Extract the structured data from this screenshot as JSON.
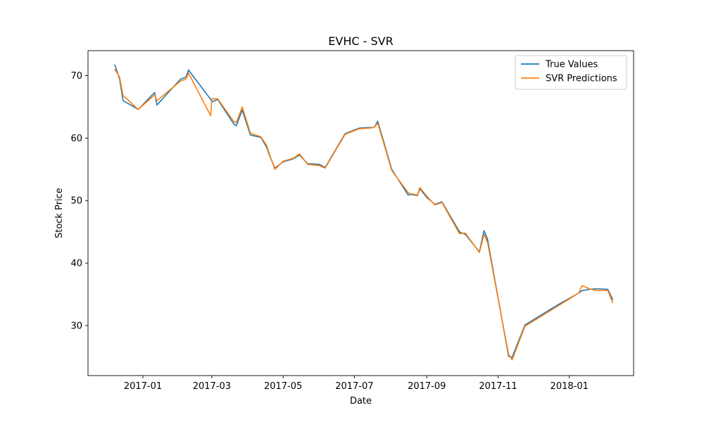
{
  "chart_data": {
    "type": "line",
    "title": "EVHC - SVR",
    "xlabel": "Date",
    "ylabel": "Stock Price",
    "xlim": [
      "2016-11-15",
      "2018-02-25"
    ],
    "ylim": [
      22,
      74
    ],
    "x_ticks": [
      {
        "date": "2017-01-01",
        "label": "2017-01"
      },
      {
        "date": "2017-03-01",
        "label": "2017-03"
      },
      {
        "date": "2017-05-01",
        "label": "2017-05"
      },
      {
        "date": "2017-07-01",
        "label": "2017-07"
      },
      {
        "date": "2017-09-01",
        "label": "2017-09"
      },
      {
        "date": "2017-11-01",
        "label": "2017-11"
      },
      {
        "date": "2018-01-01",
        "label": "2018-01"
      }
    ],
    "y_ticks": [
      30,
      40,
      50,
      60,
      70
    ],
    "grid": false,
    "legend_position": "top-right",
    "series": [
      {
        "name": "True Values",
        "color": "#1f77b4",
        "points": [
          [
            "2016-12-08",
            71.7
          ],
          [
            "2016-12-12",
            69.5
          ],
          [
            "2016-12-15",
            66.0
          ],
          [
            "2016-12-28",
            64.6
          ],
          [
            "2017-01-11",
            67.3
          ],
          [
            "2017-01-13",
            65.3
          ],
          [
            "2017-02-02",
            69.4
          ],
          [
            "2017-02-07",
            69.8
          ],
          [
            "2017-02-09",
            70.9
          ],
          [
            "2017-02-28",
            66.2
          ],
          [
            "2017-03-01",
            65.8
          ],
          [
            "2017-03-06",
            66.2
          ],
          [
            "2017-03-20",
            62.2
          ],
          [
            "2017-03-22",
            62.0
          ],
          [
            "2017-03-27",
            64.5
          ],
          [
            "2017-04-03",
            60.5
          ],
          [
            "2017-04-12",
            60.1
          ],
          [
            "2017-04-17",
            58.5
          ],
          [
            "2017-04-19",
            57.4
          ],
          [
            "2017-04-24",
            55.2
          ],
          [
            "2017-05-01",
            56.2
          ],
          [
            "2017-05-10",
            56.7
          ],
          [
            "2017-05-15",
            57.3
          ],
          [
            "2017-05-22",
            55.9
          ],
          [
            "2017-06-01",
            55.8
          ],
          [
            "2017-06-06",
            55.3
          ],
          [
            "2017-06-23",
            60.7
          ],
          [
            "2017-07-05",
            61.6
          ],
          [
            "2017-07-13",
            61.7
          ],
          [
            "2017-07-18",
            61.7
          ],
          [
            "2017-07-21",
            62.7
          ],
          [
            "2017-08-02",
            55.0
          ],
          [
            "2017-08-16",
            50.9
          ],
          [
            "2017-08-18",
            51.0
          ],
          [
            "2017-08-24",
            50.8
          ],
          [
            "2017-08-26",
            51.9
          ],
          [
            "2017-09-01",
            50.5
          ],
          [
            "2017-09-08",
            49.4
          ],
          [
            "2017-09-14",
            49.8
          ],
          [
            "2017-09-29",
            45.0
          ],
          [
            "2017-10-04",
            44.6
          ],
          [
            "2017-10-16",
            41.8
          ],
          [
            "2017-10-20",
            45.2
          ],
          [
            "2017-10-23",
            43.8
          ],
          [
            "2017-11-10",
            25.1
          ],
          [
            "2017-11-13",
            24.9
          ],
          [
            "2017-11-24",
            30.1
          ],
          [
            "2017-12-22",
            33.3
          ],
          [
            "2018-01-09",
            35.2
          ],
          [
            "2018-01-12",
            35.6
          ],
          [
            "2018-01-18",
            35.8
          ],
          [
            "2018-01-24",
            35.9
          ],
          [
            "2018-02-03",
            35.8
          ],
          [
            "2018-02-07",
            34.2
          ]
        ]
      },
      {
        "name": "SVR Predictions",
        "color": "#ff7f0e",
        "points": [
          [
            "2016-12-08",
            71.0
          ],
          [
            "2016-12-12",
            69.8
          ],
          [
            "2016-12-15",
            66.8
          ],
          [
            "2016-12-28",
            64.6
          ],
          [
            "2017-01-11",
            66.9
          ],
          [
            "2017-01-13",
            66.0
          ],
          [
            "2017-02-02",
            69.1
          ],
          [
            "2017-02-07",
            69.5
          ],
          [
            "2017-02-09",
            70.4
          ],
          [
            "2017-02-28",
            63.6
          ],
          [
            "2017-03-01",
            66.3
          ],
          [
            "2017-03-06",
            66.3
          ],
          [
            "2017-03-20",
            62.6
          ],
          [
            "2017-03-22",
            62.5
          ],
          [
            "2017-03-27",
            65.0
          ],
          [
            "2017-04-03",
            60.8
          ],
          [
            "2017-04-12",
            60.2
          ],
          [
            "2017-04-17",
            58.8
          ],
          [
            "2017-04-19",
            57.6
          ],
          [
            "2017-04-24",
            55.0
          ],
          [
            "2017-05-01",
            56.3
          ],
          [
            "2017-05-10",
            56.8
          ],
          [
            "2017-05-15",
            57.5
          ],
          [
            "2017-05-22",
            55.8
          ],
          [
            "2017-06-01",
            55.6
          ],
          [
            "2017-06-06",
            55.2
          ],
          [
            "2017-06-23",
            60.6
          ],
          [
            "2017-07-05",
            61.5
          ],
          [
            "2017-07-13",
            61.6
          ],
          [
            "2017-07-18",
            61.7
          ],
          [
            "2017-07-21",
            62.4
          ],
          [
            "2017-08-02",
            54.8
          ],
          [
            "2017-08-16",
            51.3
          ],
          [
            "2017-08-18",
            51.1
          ],
          [
            "2017-08-24",
            50.9
          ],
          [
            "2017-08-26",
            52.1
          ],
          [
            "2017-09-01",
            50.7
          ],
          [
            "2017-09-08",
            49.3
          ],
          [
            "2017-09-14",
            49.7
          ],
          [
            "2017-09-29",
            44.7
          ],
          [
            "2017-10-04",
            44.8
          ],
          [
            "2017-10-16",
            41.7
          ],
          [
            "2017-10-20",
            44.6
          ],
          [
            "2017-10-23",
            43.3
          ],
          [
            "2017-11-10",
            25.4
          ],
          [
            "2017-11-13",
            24.5
          ],
          [
            "2017-11-24",
            29.9
          ],
          [
            "2017-12-22",
            33.1
          ],
          [
            "2018-01-09",
            35.2
          ],
          [
            "2018-01-12",
            36.4
          ],
          [
            "2018-01-18",
            35.9
          ],
          [
            "2018-01-24",
            35.6
          ],
          [
            "2018-02-03",
            35.6
          ],
          [
            "2018-02-07",
            33.7
          ]
        ]
      }
    ]
  }
}
